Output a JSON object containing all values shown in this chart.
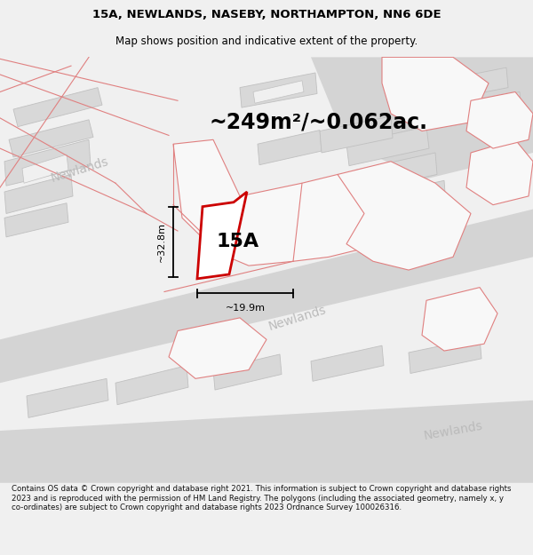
{
  "title_line1": "15A, NEWLANDS, NASEBY, NORTHAMPTON, NN6 6DE",
  "title_line2": "Map shows position and indicative extent of the property.",
  "area_label": "~249m²/~0.062ac.",
  "property_label": "15A",
  "dim_vertical": "~32.8m",
  "dim_horizontal": "~19.9m",
  "footer_text": "Contains OS data © Crown copyright and database right 2021. This information is subject to Crown copyright and database rights 2023 and is reproduced with the permission of HM Land Registry. The polygons (including the associated geometry, namely x, y co-ordinates) are subject to Crown copyright and database rights 2023 Ordnance Survey 100026316.",
  "bg_color": "#f0f0f0",
  "map_bg": "#ffffff",
  "road_color": "#d4d4d4",
  "building_color": "#d8d8d8",
  "building_edge": "#c0c0c0",
  "property_edge": "#cc0000",
  "property_fill": "#ffffff",
  "parcel_edge": "#e08080",
  "road_label_color": "#bbbbbb",
  "dim_color": "#000000",
  "title_color": "#000000",
  "area_color": "#000000",
  "footer_color": "#111111",
  "title_fs": 9.5,
  "subtitle_fs": 8.5,
  "area_fs": 17,
  "label_fs": 16,
  "dim_fs": 8,
  "road_label_fs": 10,
  "footer_fs": 6.2
}
